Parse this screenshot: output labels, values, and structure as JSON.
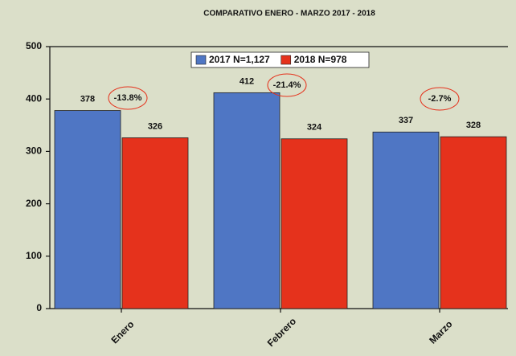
{
  "chart_data": {
    "type": "bar",
    "title": "COMPARATIVO ENERO - MARZO 2017 - 2018",
    "categories": [
      "Enero",
      "Febrero",
      "Marzo"
    ],
    "series": [
      {
        "name": "2017 N=1,127",
        "color": "#4f76c4",
        "values": [
          378,
          412,
          337
        ]
      },
      {
        "name": "2018 N=978",
        "color": "#e5321c",
        "values": [
          326,
          324,
          328
        ]
      }
    ],
    "annotations": [
      "-13.8%",
      "-21.4%",
      "-2.7%"
    ],
    "ylim": [
      0,
      500
    ],
    "yticks": [
      0,
      100,
      200,
      300,
      400,
      500
    ],
    "legend": "top",
    "grid": false
  }
}
